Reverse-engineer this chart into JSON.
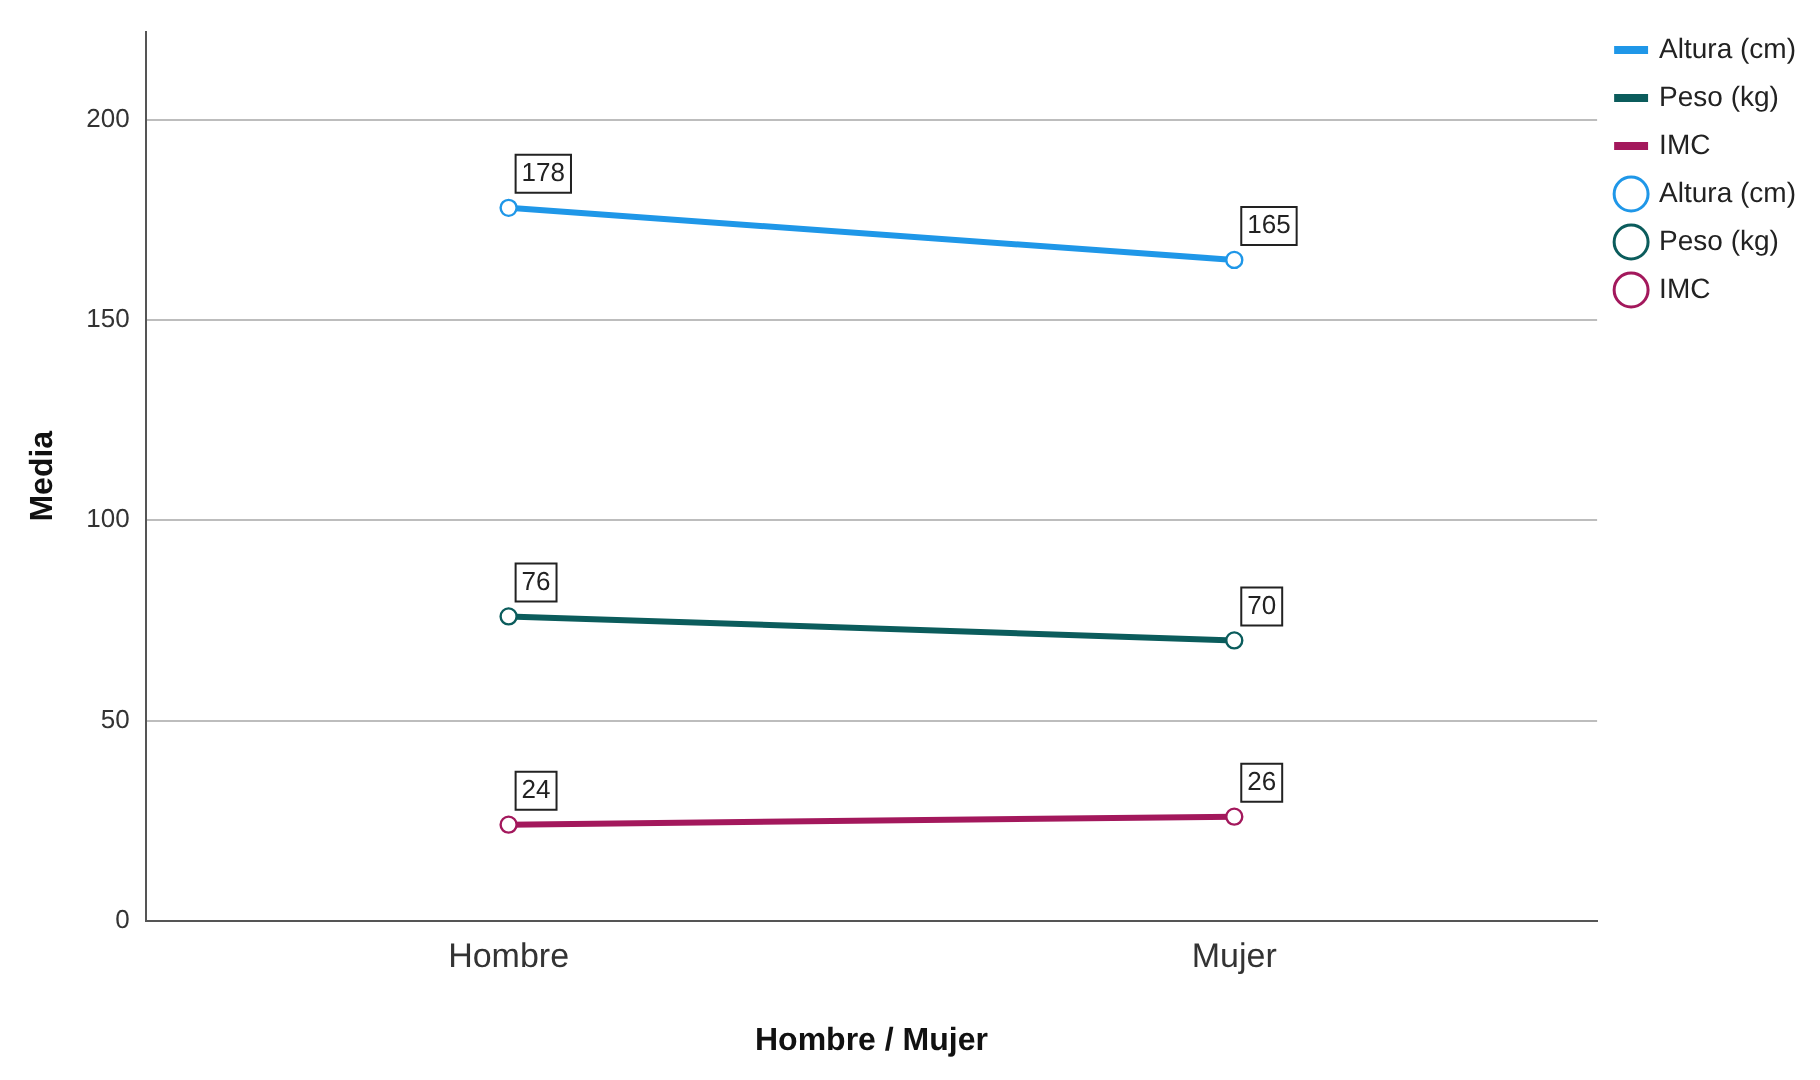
{
  "chart_data": {
    "type": "line",
    "xlabel": "Hombre / Mujer",
    "ylabel": "Media",
    "categories": [
      "Hombre",
      "Mujer"
    ],
    "series": [
      {
        "name": "Altura (cm)",
        "color": "#1f97e8",
        "values": [
          178,
          165
        ]
      },
      {
        "name": "Peso (kg)",
        "color": "#0b5c5c",
        "values": [
          76,
          70
        ]
      },
      {
        "name": "IMC",
        "color": "#a3185c",
        "values": [
          24,
          26
        ]
      }
    ],
    "ylim": [
      0,
      222
    ],
    "yticks": [
      0,
      50,
      100,
      150,
      200
    ],
    "grid": "y",
    "legend": "top right",
    "marker": "circle",
    "line_style": "solid",
    "data_labels": true
  }
}
